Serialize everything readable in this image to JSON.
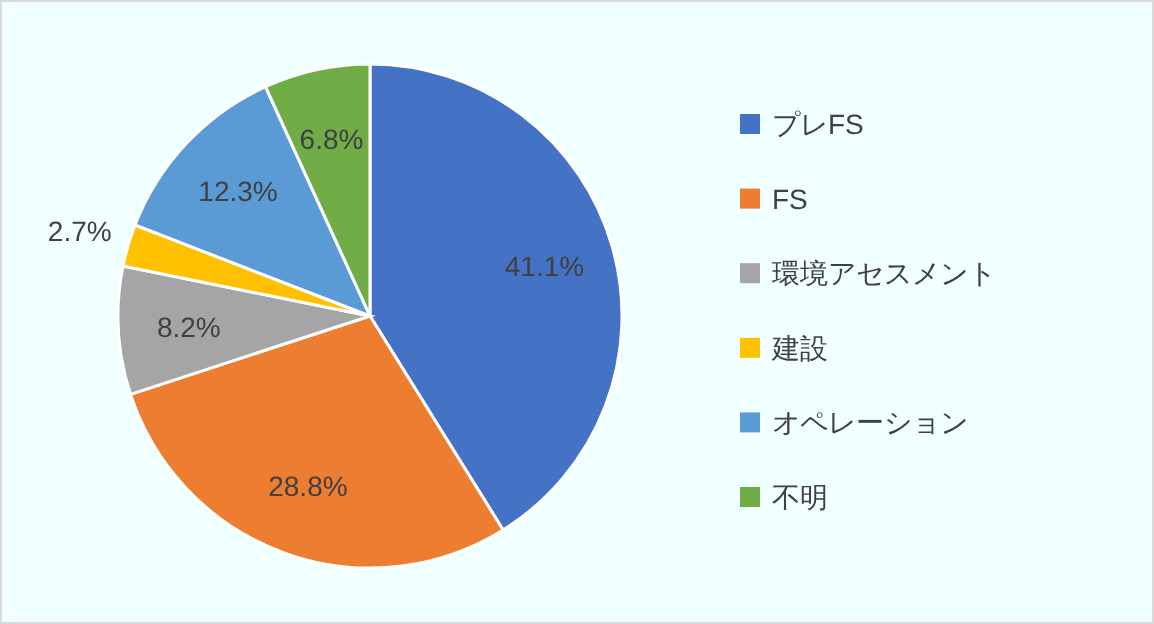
{
  "chart_data": {
    "type": "pie",
    "categories": [
      "プレFS",
      "FS",
      "環境アセスメント",
      "建設",
      "オペレーション",
      "不明"
    ],
    "values": [
      41.1,
      28.8,
      8.2,
      2.7,
      12.3,
      6.8
    ],
    "colors": [
      "#4472c4",
      "#ed7d31",
      "#a5a5a5",
      "#ffc000",
      "#5b9bd5",
      "#70ad47"
    ],
    "value_labels": [
      "41.1%",
      "28.8%",
      "8.2%",
      "2.7%",
      "12.3%",
      "6.8%"
    ],
    "legend": "right"
  }
}
